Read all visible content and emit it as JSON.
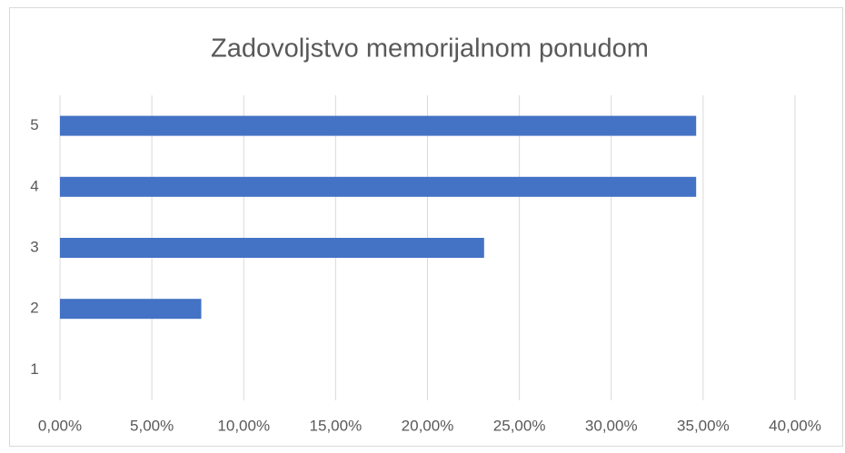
{
  "chart_data": {
    "type": "bar",
    "orientation": "horizontal",
    "title": "Zadovoljstvo memorijalnom ponudom",
    "categories": [
      "1",
      "2",
      "3",
      "4",
      "5"
    ],
    "values": [
      0,
      7.69,
      23.08,
      34.62,
      34.62
    ],
    "color": "#4472c4",
    "xlim": [
      0,
      40
    ],
    "xticks": [
      {
        "value": 0,
        "label": "0,00%"
      },
      {
        "value": 5,
        "label": "5,00%"
      },
      {
        "value": 10,
        "label": "10,00%"
      },
      {
        "value": 15,
        "label": "15,00%"
      },
      {
        "value": 20,
        "label": "20,00%"
      },
      {
        "value": 25,
        "label": "25,00%"
      },
      {
        "value": 30,
        "label": "30,00%"
      },
      {
        "value": 35,
        "label": "35,00%"
      },
      {
        "value": 40,
        "label": "40,00%"
      }
    ],
    "grid": true
  }
}
